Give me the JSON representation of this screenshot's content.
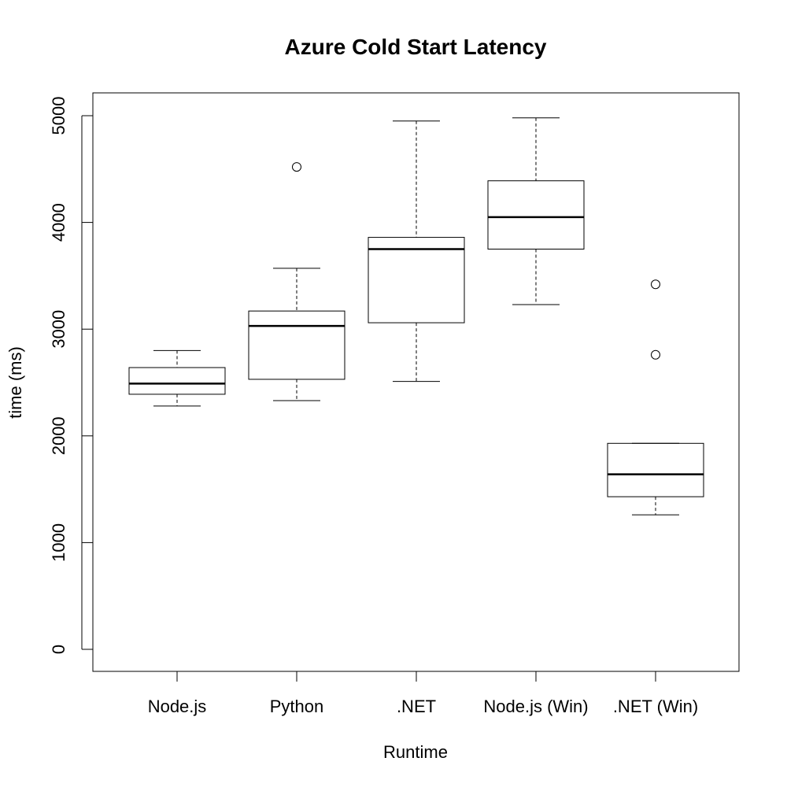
{
  "chart_data": {
    "type": "boxplot",
    "title": "Azure Cold Start Latency",
    "xlabel": "Runtime",
    "ylabel": "time (ms)",
    "ylim": [
      -200,
      5200
    ],
    "yticks": [
      0,
      1000,
      2000,
      3000,
      4000,
      5000
    ],
    "grid": false,
    "categories": [
      "Node.js",
      "Python",
      ".NET",
      "Node.js (Win)",
      ".NET (Win)"
    ],
    "boxes": [
      {
        "category": "Node.js",
        "whisker_low": 2280,
        "q1": 2390,
        "median": 2490,
        "q3": 2640,
        "whisker_high": 2800,
        "outliers": []
      },
      {
        "category": "Python",
        "whisker_low": 2330,
        "q1": 2530,
        "median": 3030,
        "q3": 3170,
        "whisker_high": 3570,
        "outliers": [
          4520
        ]
      },
      {
        "category": ".NET",
        "whisker_low": 2510,
        "q1": 3060,
        "median": 3750,
        "q3": 3860,
        "whisker_high": 4950,
        "outliers": []
      },
      {
        "category": "Node.js (Win)",
        "whisker_low": 3230,
        "q1": 3750,
        "median": 4050,
        "q3": 4390,
        "whisker_high": 4980,
        "outliers": []
      },
      {
        "category": ".NET (Win)",
        "whisker_low": 1260,
        "q1": 1430,
        "median": 1640,
        "q3": 1930,
        "whisker_high": 1930,
        "outliers": [
          2760,
          3420
        ]
      }
    ]
  }
}
